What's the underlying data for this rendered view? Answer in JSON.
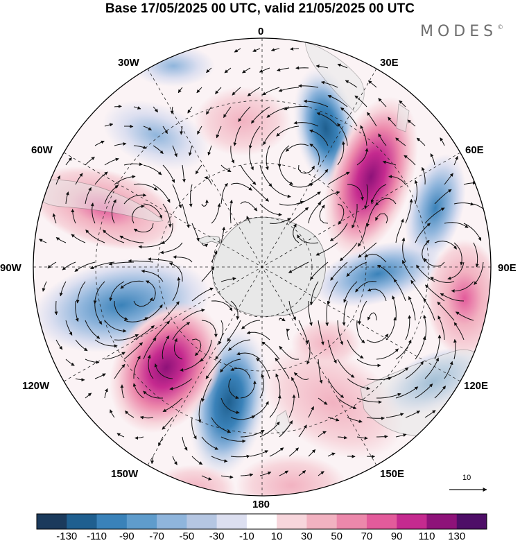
{
  "title": "Base 17/05/2025 00 UTC, valid 21/05/2025 00 UTC",
  "logo": {
    "text": "MODES",
    "mark": "©"
  },
  "longitude_labels": {
    "lon_0": "0",
    "lon_30e": "30E",
    "lon_60e": "60E",
    "lon_90e": "90E",
    "lon_120e": "120E",
    "lon_150e": "150E",
    "lon_180": "180",
    "lon_150w": "150W",
    "lon_120w": "120W",
    "lon_90w": "90W",
    "lon_60w": "60W",
    "lon_30w": "30W"
  },
  "projection": "south polar stereographic",
  "reference_vector": {
    "label": "10"
  },
  "colorbar": {
    "ticks": [
      "-130",
      "-110",
      "-90",
      "-70",
      "-50",
      "-30",
      "-10",
      "10",
      "30",
      "50",
      "70",
      "90",
      "110",
      "130"
    ],
    "colors": [
      "#1b3a5c",
      "#1f5f8f",
      "#3a82b9",
      "#5f9ccc",
      "#8fb5dc",
      "#b5c6e2",
      "#dcdff0",
      "#ffffff",
      "#f7d6dc",
      "#f2b2c1",
      "#ec88ab",
      "#e35b9b",
      "#c52a8f",
      "#8e1279",
      "#4e0e67"
    ]
  },
  "anomaly_centers": [
    {
      "lon": 25,
      "lat": -48,
      "value": -110
    },
    {
      "lon": 50,
      "lat": -52,
      "value": 110
    },
    {
      "lon": 68,
      "lat": -40,
      "value": -70
    },
    {
      "lon": 102,
      "lat": -42,
      "value": -70
    },
    {
      "lon": 87,
      "lat": -28,
      "value": 70
    },
    {
      "lon": 122,
      "lat": -40,
      "value": -70
    },
    {
      "lon": 155,
      "lat": -55,
      "value": 30
    },
    {
      "lon": -165,
      "lat": -45,
      "value": -90
    },
    {
      "lon": -140,
      "lat": -48,
      "value": 100
    },
    {
      "lon": -105,
      "lat": -42,
      "value": -70
    },
    {
      "lon": -70,
      "lat": -42,
      "value": 50
    },
    {
      "lon": -45,
      "lat": -55,
      "value": -30
    },
    {
      "lon": -15,
      "lat": -62,
      "value": 30
    }
  ],
  "colors": {
    "land": "#e8e8e8",
    "coast": "#7a7a7a",
    "arrows": "#111111"
  }
}
